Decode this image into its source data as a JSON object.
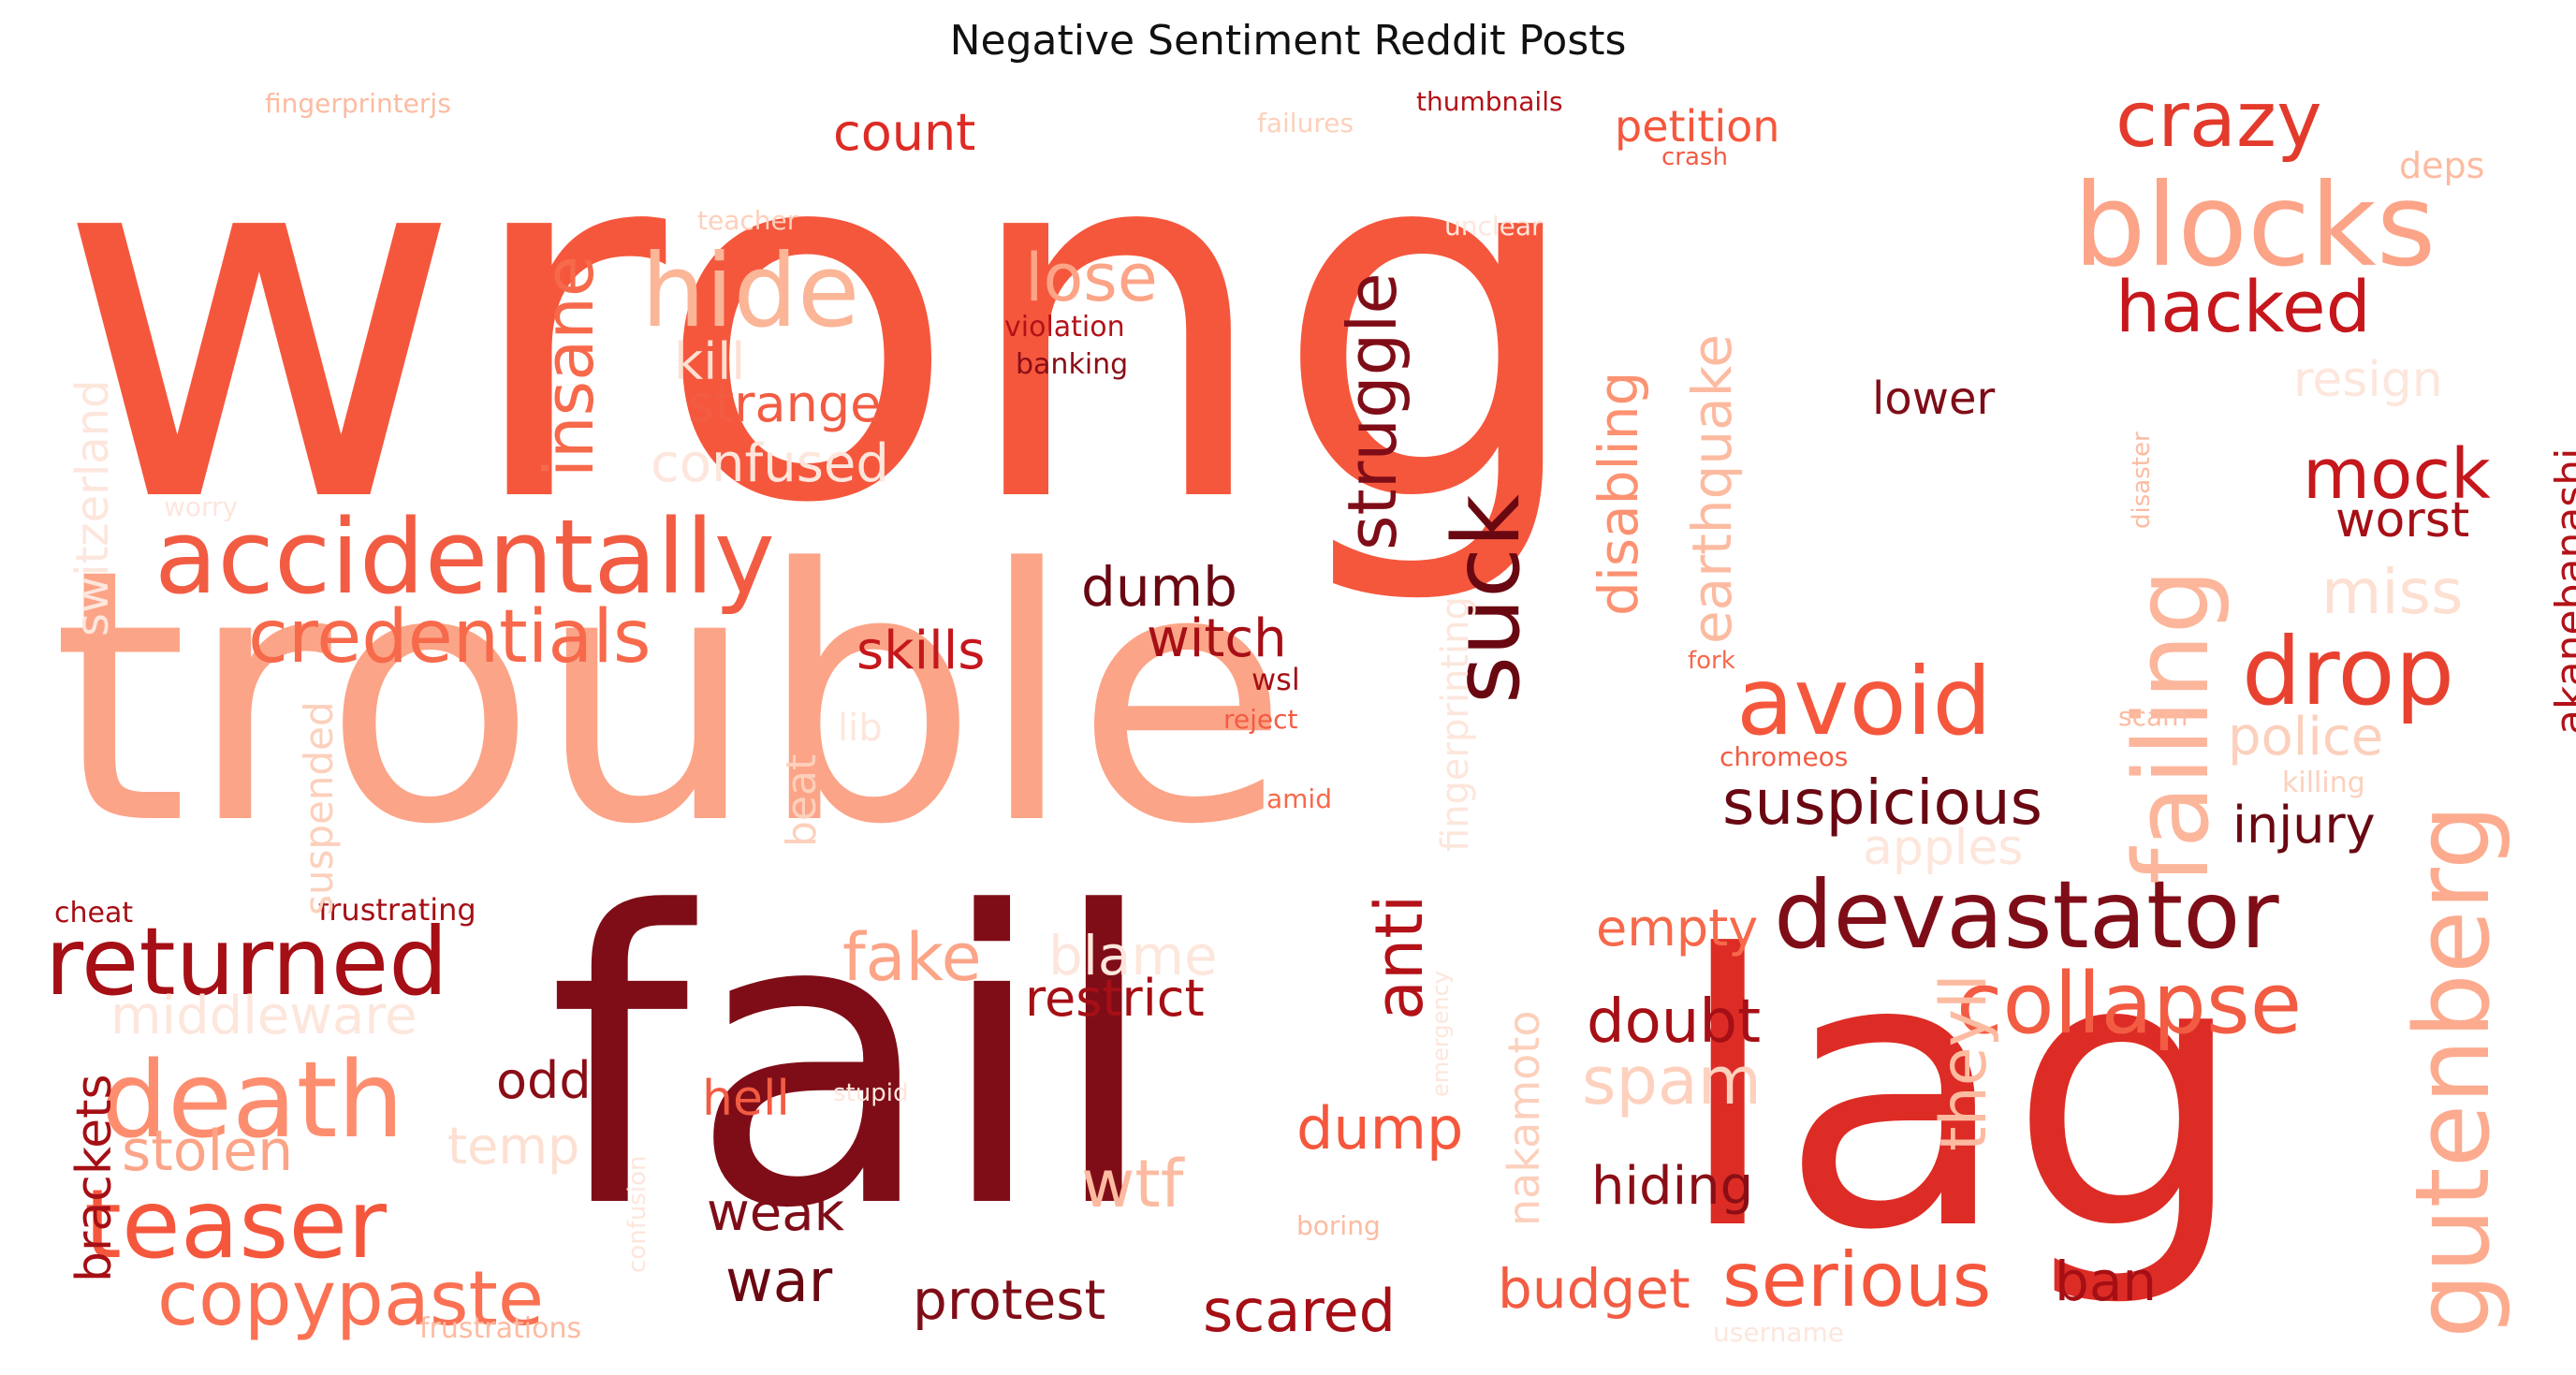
{
  "title": "Negative Sentiment Reddit Posts",
  "colors": {
    "background": "#ffffff",
    "title": "#111111",
    "palette": "Reds"
  },
  "words": [
    {
      "text": "wrong",
      "color": "#f5573d"
    },
    {
      "text": "trouble",
      "color": "#fca487"
    },
    {
      "text": "fail",
      "color": "#7f0d17"
    },
    {
      "text": "lag",
      "color": "#dd2c25"
    },
    {
      "text": "blocks",
      "color": "#fca487"
    },
    {
      "text": "crazy",
      "color": "#e33a2c"
    },
    {
      "text": "hacked",
      "color": "#c5171c"
    },
    {
      "text": "accidentally",
      "color": "#f25c43"
    },
    {
      "text": "hide",
      "color": "#fbb597"
    },
    {
      "text": "lose",
      "color": "#fca487"
    },
    {
      "text": "credentials",
      "color": "#f7694b"
    },
    {
      "text": "suck",
      "color": "#6a0812"
    },
    {
      "text": "avoid",
      "color": "#f5573d"
    },
    {
      "text": "drop",
      "color": "#e8412f"
    },
    {
      "text": "devastator",
      "color": "#7f0d17"
    },
    {
      "text": "returned",
      "color": "#a50f15"
    },
    {
      "text": "death",
      "color": "#fc8e6f"
    },
    {
      "text": "teaser",
      "color": "#f5573d"
    },
    {
      "text": "copypaste",
      "color": "#fa7153"
    },
    {
      "text": "collapse",
      "color": "#f25c43"
    },
    {
      "text": "failing",
      "color": "#fcb69b"
    },
    {
      "text": "gutenberg",
      "color": "#fcab8f"
    },
    {
      "text": "struggle",
      "color": "#7f0d17"
    },
    {
      "text": "insane",
      "color": "#f7694b"
    },
    {
      "text": "disabling",
      "color": "#fc9272"
    },
    {
      "text": "earthquake",
      "color": "#fcbba1"
    },
    {
      "text": "suspicious",
      "color": "#6a0812"
    },
    {
      "text": "mock",
      "color": "#c5171c"
    },
    {
      "text": "worst",
      "color": "#a50f15"
    },
    {
      "text": "miss",
      "color": "#fde0d2"
    },
    {
      "text": "police",
      "color": "#fcd0bc"
    },
    {
      "text": "injury",
      "color": "#6a0812"
    },
    {
      "text": "akanebanashi",
      "color": "#b21218"
    },
    {
      "text": "lower",
      "color": "#7f0d17"
    },
    {
      "text": "resign",
      "color": "#fde6dc"
    },
    {
      "text": "apples",
      "color": "#fde6dc"
    },
    {
      "text": "strange",
      "color": "#f25c43"
    },
    {
      "text": "kill",
      "color": "#fde0d2"
    },
    {
      "text": "confused",
      "color": "#fde6dc"
    },
    {
      "text": "count",
      "color": "#dd2c25"
    },
    {
      "text": "petition",
      "color": "#f5573d"
    },
    {
      "text": "dumb",
      "color": "#6a0812"
    },
    {
      "text": "witch",
      "color": "#a50f15"
    },
    {
      "text": "skills",
      "color": "#c5171c"
    },
    {
      "text": "fake",
      "color": "#fca487"
    },
    {
      "text": "blame",
      "color": "#fde6dc"
    },
    {
      "text": "anti",
      "color": "#b21218"
    },
    {
      "text": "restrict",
      "color": "#a50f15"
    },
    {
      "text": "dump",
      "color": "#f5573d"
    },
    {
      "text": "doubt",
      "color": "#a50f15"
    },
    {
      "text": "spam",
      "color": "#fdd1be"
    },
    {
      "text": "theyll",
      "color": "#fcbba1"
    },
    {
      "text": "empty",
      "color": "#f7694b"
    },
    {
      "text": "hiding",
      "color": "#8b0e16"
    },
    {
      "text": "serious",
      "color": "#f5573d"
    },
    {
      "text": "ban",
      "color": "#a50f15"
    },
    {
      "text": "budget",
      "color": "#f25c43"
    },
    {
      "text": "scared",
      "color": "#a50f15"
    },
    {
      "text": "protest",
      "color": "#7f0d17"
    },
    {
      "text": "war",
      "color": "#6a0812"
    },
    {
      "text": "weak",
      "color": "#7f0d17"
    },
    {
      "text": "wtf",
      "color": "#fcbba1"
    },
    {
      "text": "hell",
      "color": "#f25c43"
    },
    {
      "text": "odd",
      "color": "#8b0e16"
    },
    {
      "text": "temp",
      "color": "#fde0d2"
    },
    {
      "text": "stolen",
      "color": "#fca487"
    },
    {
      "text": "middleware",
      "color": "#fde6dc"
    },
    {
      "text": "brackets",
      "color": "#a50f15"
    },
    {
      "text": "frustrating",
      "color": "#a50f15"
    },
    {
      "text": "frustrations",
      "color": "#fcbba1"
    },
    {
      "text": "cheat",
      "color": "#a50f15"
    },
    {
      "text": "suspended",
      "color": "#fcd0bc"
    },
    {
      "text": "beat",
      "color": "#fcd0bc"
    },
    {
      "text": "fingerprinting",
      "color": "#fde6dc"
    },
    {
      "text": "nakamoto",
      "color": "#fcd0bc"
    },
    {
      "text": "confusion",
      "color": "#fde6dc"
    },
    {
      "text": "emergency",
      "color": "#fde6dc"
    },
    {
      "text": "stupid",
      "color": "#fde6dc"
    },
    {
      "text": "boring",
      "color": "#fcbba1"
    },
    {
      "text": "username",
      "color": "#fde6dc"
    },
    {
      "text": "switzerland",
      "color": "#fde6dc"
    },
    {
      "text": "worry",
      "color": "#fde6dc"
    },
    {
      "text": "fingerprinterjs",
      "color": "#fcbba1"
    },
    {
      "text": "failures",
      "color": "#fcd0bc"
    },
    {
      "text": "thumbnails",
      "color": "#b21218"
    },
    {
      "text": "crash",
      "color": "#f25c43"
    },
    {
      "text": "teacher",
      "color": "#fcd0bc"
    },
    {
      "text": "unclear",
      "color": "#fde6dc"
    },
    {
      "text": "violation",
      "color": "#b21218"
    },
    {
      "text": "banking",
      "color": "#8b0e16"
    },
    {
      "text": "deps",
      "color": "#fcbba1"
    },
    {
      "text": "disaster",
      "color": "#fcbba1"
    },
    {
      "text": "lib",
      "color": "#fde6dc"
    },
    {
      "text": "reject",
      "color": "#f25c43"
    },
    {
      "text": "amid",
      "color": "#f7694b"
    },
    {
      "text": "wsl",
      "color": "#a50f15"
    },
    {
      "text": "fork",
      "color": "#f7694b"
    },
    {
      "text": "chromeos",
      "color": "#f25c43"
    },
    {
      "text": "killing",
      "color": "#fcd0bc"
    },
    {
      "text": "scam",
      "color": "#fcbba1"
    }
  ]
}
